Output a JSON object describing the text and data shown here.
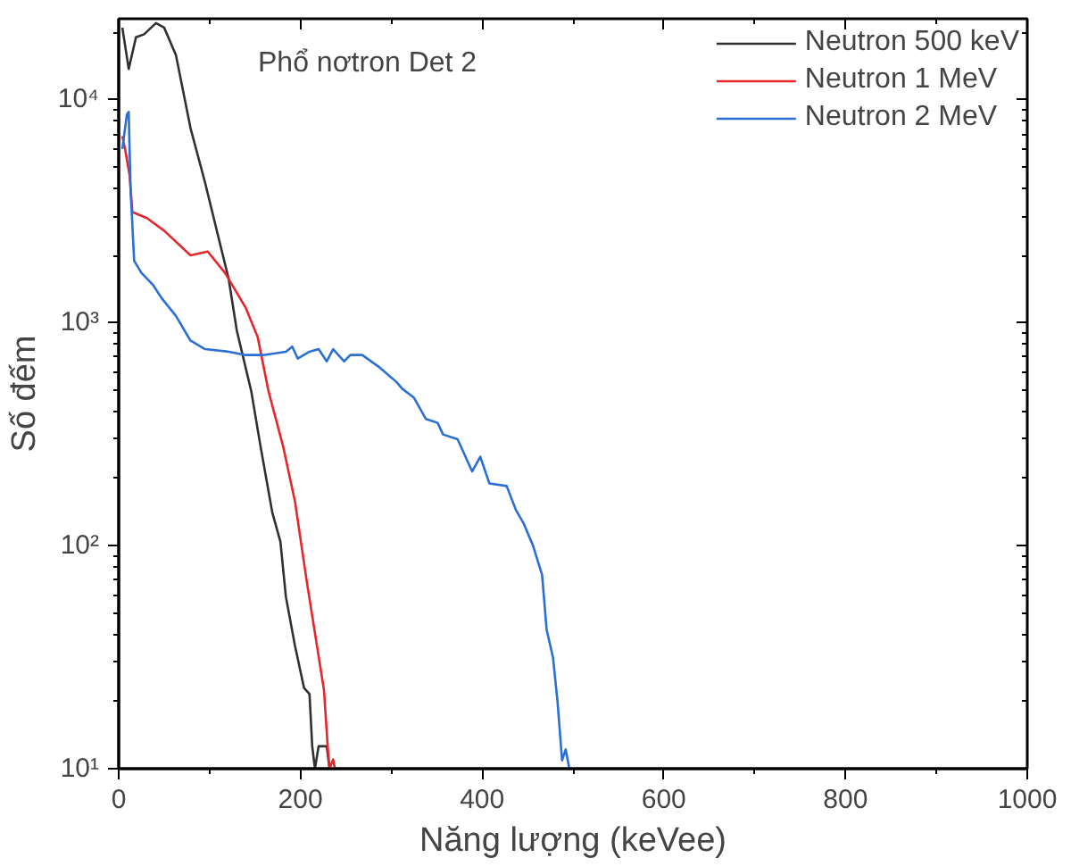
{
  "chart_data": {
    "type": "line",
    "xlabel": "Năng lượng (keVee)",
    "ylabel": "Số đếm",
    "annotations": [
      "Phổ nơtron Det 2"
    ],
    "log": "y",
    "grid": false,
    "legend": "top right",
    "marker": "none",
    "line_style": "solid",
    "xlim": [
      0,
      1000
    ],
    "xticks": [
      0,
      200,
      400,
      600,
      800,
      1000
    ],
    "ylim": [
      10,
      23000
    ],
    "yticks": [
      {
        "value": 10,
        "label": "10¹"
      },
      {
        "value": 100,
        "label": "10²"
      },
      {
        "value": 1000,
        "label": "10³"
      },
      {
        "value": 10000,
        "label": "10⁴"
      }
    ],
    "series": [
      {
        "name": "Neutron 500 keV",
        "color": "#303030",
        "x": [
          4,
          11,
          19,
          28,
          41,
          50,
          63,
          79,
          95,
          108,
          121,
          130,
          146,
          156,
          169,
          178,
          184,
          194,
          204,
          210,
          213,
          216,
          220,
          229,
          232
        ],
        "values": [
          21000,
          13700,
          19000,
          19600,
          22000,
          21000,
          15800,
          7450,
          4250,
          2580,
          1570,
          920,
          490,
          280,
          141,
          104,
          59,
          35.6,
          23,
          21.6,
          12.6,
          10,
          12.6,
          12.6,
          10
        ]
      },
      {
        "name": "Neutron 1 MeV",
        "color": "#e8262a",
        "x": [
          4,
          7,
          12,
          15,
          31,
          50,
          79,
          98,
          117,
          140,
          153,
          165,
          181,
          194,
          207,
          220,
          226,
          230,
          232,
          236,
          238
        ],
        "values": [
          6850,
          6000,
          4560,
          3130,
          2940,
          2580,
          2000,
          2080,
          1670,
          1160,
          860,
          490,
          278,
          158,
          69,
          32,
          22.4,
          12.6,
          10,
          11,
          10
        ]
      },
      {
        "name": "Neutron 2 MeV",
        "color": "#2a6fd6",
        "x": [
          4,
          9,
          11,
          13,
          17,
          25,
          38,
          47,
          63,
          79,
          95,
          121,
          140,
          159,
          184,
          191,
          197,
          210,
          220,
          229,
          236,
          248,
          255,
          268,
          287,
          306,
          312,
          325,
          338,
          351,
          357,
          373,
          389,
          398,
          408,
          427,
          437,
          446,
          456,
          466,
          471,
          478,
          483,
          488,
          492,
          496
        ],
        "values": [
          6000,
          8550,
          8800,
          4020,
          1890,
          1670,
          1470,
          1290,
          1070,
          830,
          760,
          740,
          715,
          715,
          740,
          780,
          690,
          740,
          760,
          670,
          760,
          670,
          715,
          715,
          630,
          540,
          505,
          460,
          370,
          355,
          315,
          300,
          215,
          250,
          190,
          185,
          145,
          125,
          100,
          74,
          42,
          31.5,
          20,
          10.9,
          12.2,
          10
        ]
      }
    ]
  }
}
